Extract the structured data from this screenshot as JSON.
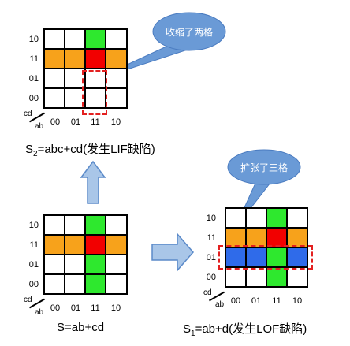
{
  "colors": {
    "orange": "#f7a21b",
    "green": "#2ee82e",
    "red": "#f20000",
    "blue": "#2f6bea",
    "white": "#ffffff",
    "callout_blue": "#6a9ad6",
    "arrow_blue": "#a9c6e8",
    "dashed_red": "#e32020"
  },
  "row_labels": [
    "10",
    "11",
    "01",
    "00"
  ],
  "col_labels": [
    "00",
    "01",
    "11",
    "10"
  ],
  "corner": {
    "cd": "cd",
    "ab": "ab"
  },
  "maps": {
    "top": {
      "caption_prefix": "S",
      "caption_sub": "2",
      "caption_rest": "=abc+cd(发生LIF缺陷)",
      "callout": "收缩了两格"
    },
    "bottom_left": {
      "caption": "S=ab+cd"
    },
    "bottom_right": {
      "caption_prefix": "S",
      "caption_sub": "1",
      "caption_rest": "=ab+d(发生LOF缺陷)",
      "callout": "扩张了三格"
    }
  }
}
